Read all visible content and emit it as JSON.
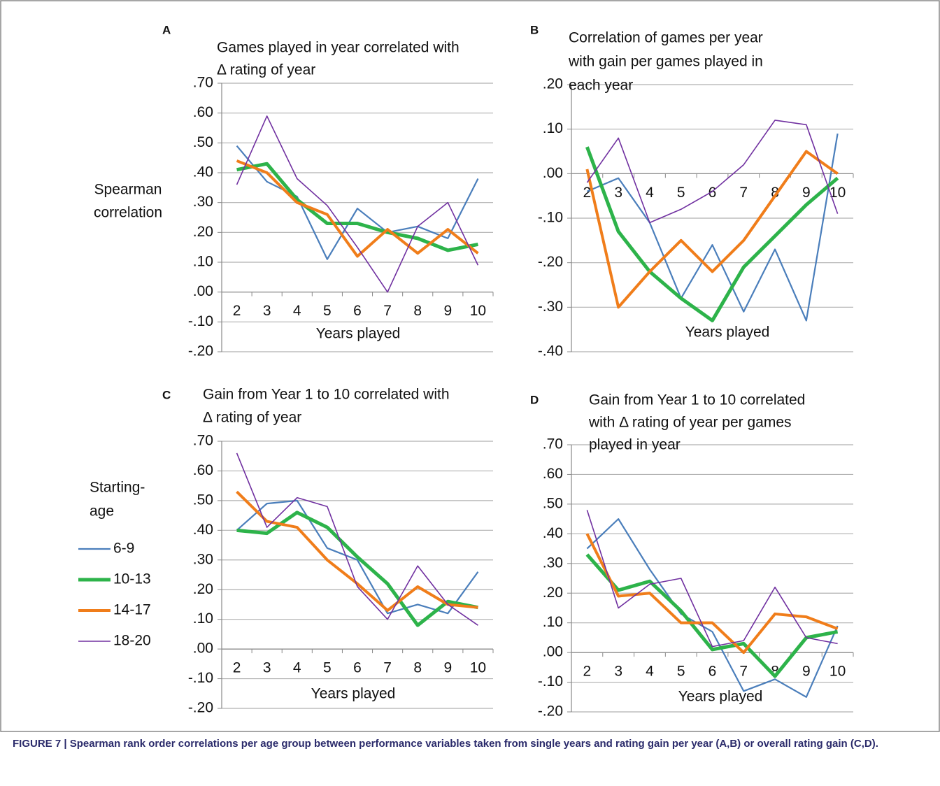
{
  "chart_data": [
    {
      "type": "line",
      "letter": "A",
      "title": [
        "Games played in year correlated with",
        "Δ rating of year"
      ],
      "ylabel": [
        "Spearman",
        "correlation"
      ],
      "xlabel": "Years played",
      "categories": [
        2,
        3,
        4,
        5,
        6,
        7,
        8,
        9,
        10
      ],
      "ylim": [
        -0.2,
        0.7
      ],
      "yticks": [
        {
          "value": 0.7,
          "label": ".70"
        },
        {
          "value": 0.6,
          "label": ".60"
        },
        {
          "value": 0.5,
          "label": ".50"
        },
        {
          "value": 0.4,
          "label": ".40"
        },
        {
          "value": 0.3,
          "label": ".30"
        },
        {
          "value": 0.2,
          "label": ".20"
        },
        {
          "value": 0.1,
          "label": ".10"
        },
        {
          "value": 0,
          "label": ".00"
        },
        {
          "value": -0.1,
          "label": "-.10"
        },
        {
          "value": -0.2,
          "label": "-.20"
        }
      ],
      "grid": true,
      "series": [
        {
          "color": "#4a7ebb",
          "line_width": 2.2,
          "values": [
            0.49,
            0.37,
            0.32,
            0.11,
            0.28,
            0.2,
            0.22,
            0.18,
            0.38
          ]
        },
        {
          "color": "#2db34a",
          "line_width": 5,
          "values": [
            0.41,
            0.43,
            0.31,
            0.23,
            0.23,
            0.2,
            0.18,
            0.14,
            0.16
          ]
        },
        {
          "color": "#f07d1a",
          "line_width": 4,
          "values": [
            0.44,
            0.4,
            0.3,
            0.26,
            0.12,
            0.21,
            0.13,
            0.21,
            0.13
          ]
        },
        {
          "color": "#7030a0",
          "line_width": 1.6,
          "values": [
            0.36,
            0.59,
            0.38,
            0.29,
            0.15,
            0.0,
            0.22,
            0.3,
            0.09
          ]
        }
      ]
    },
    {
      "type": "line",
      "letter": "B",
      "title": [
        "Correlation of games per year",
        "with  gain per games played in",
        "each year"
      ],
      "xlabel": "Years played",
      "categories": [
        2,
        3,
        4,
        5,
        6,
        7,
        8,
        9,
        10
      ],
      "ylim": [
        -0.4,
        0.2
      ],
      "yticks": [
        {
          "value": 0.2,
          "label": ".20"
        },
        {
          "value": 0.1,
          "label": ".10"
        },
        {
          "value": 0,
          "label": ".00"
        },
        {
          "value": -0.1,
          "label": "-.10"
        },
        {
          "value": -0.2,
          "label": "-.20"
        },
        {
          "value": -0.3,
          "label": "-.30"
        },
        {
          "value": -0.4,
          "label": "-.40"
        }
      ],
      "grid": true,
      "series": [
        {
          "color": "#4a7ebb",
          "line_width": 2.2,
          "values": [
            -0.04,
            -0.01,
            -0.11,
            -0.28,
            -0.16,
            -0.31,
            -0.17,
            -0.33,
            0.09
          ]
        },
        {
          "color": "#2db34a",
          "line_width": 5,
          "values": [
            0.06,
            -0.13,
            -0.22,
            -0.28,
            -0.33,
            -0.21,
            -0.14,
            -0.07,
            -0.01
          ]
        },
        {
          "color": "#f07d1a",
          "line_width": 4,
          "values": [
            0.01,
            -0.3,
            -0.22,
            -0.15,
            -0.22,
            -0.15,
            -0.05,
            0.05,
            0.0
          ]
        },
        {
          "color": "#7030a0",
          "line_width": 1.6,
          "values": [
            -0.02,
            0.08,
            -0.11,
            -0.08,
            -0.04,
            0.02,
            0.12,
            0.11,
            -0.09
          ]
        }
      ]
    },
    {
      "type": "line",
      "letter": "C",
      "title": [
        "Gain from Year 1 to 10 correlated with",
        "Δ rating of year"
      ],
      "xlabel": "Years played",
      "legend_title": [
        "Starting-",
        "age"
      ],
      "categories": [
        2,
        3,
        4,
        5,
        6,
        7,
        8,
        9,
        10
      ],
      "ylim": [
        -0.2,
        0.7
      ],
      "yticks": [
        {
          "value": 0.7,
          "label": ".70"
        },
        {
          "value": 0.6,
          "label": ".60"
        },
        {
          "value": 0.5,
          "label": ".50"
        },
        {
          "value": 0.4,
          "label": ".40"
        },
        {
          "value": 0.3,
          "label": ".30"
        },
        {
          "value": 0.2,
          "label": ".20"
        },
        {
          "value": 0.1,
          "label": ".10"
        },
        {
          "value": 0,
          "label": ".00"
        },
        {
          "value": -0.1,
          "label": "-.10"
        },
        {
          "value": -0.2,
          "label": "-.20"
        }
      ],
      "grid": true,
      "series": [
        {
          "name": "6-9",
          "color": "#4a7ebb",
          "line_width": 2.2,
          "values": [
            0.4,
            0.49,
            0.5,
            0.34,
            0.3,
            0.12,
            0.15,
            0.12,
            0.26
          ]
        },
        {
          "name": "10-13",
          "color": "#2db34a",
          "line_width": 5,
          "values": [
            0.4,
            0.39,
            0.46,
            0.41,
            0.31,
            0.22,
            0.08,
            0.16,
            0.14
          ]
        },
        {
          "name": "14-17",
          "color": "#f07d1a",
          "line_width": 4,
          "values": [
            0.53,
            0.43,
            0.41,
            0.3,
            0.22,
            0.13,
            0.21,
            0.15,
            0.14
          ]
        },
        {
          "name": "18-20",
          "color": "#7030a0",
          "line_width": 1.6,
          "values": [
            0.66,
            0.41,
            0.51,
            0.48,
            0.21,
            0.1,
            0.28,
            0.15,
            0.08
          ]
        }
      ]
    },
    {
      "type": "line",
      "letter": "D",
      "title": [
        "Gain from Year 1 to 10 correlated",
        "with  Δ rating of year per games",
        "played in year"
      ],
      "xlabel": "Years played",
      "categories": [
        2,
        3,
        4,
        5,
        6,
        7,
        8,
        9,
        10
      ],
      "ylim": [
        -0.2,
        0.7
      ],
      "yticks": [
        {
          "value": 0.7,
          "label": ".70"
        },
        {
          "value": 0.6,
          "label": ".60"
        },
        {
          "value": 0.5,
          "label": ".50"
        },
        {
          "value": 0.4,
          "label": ".40"
        },
        {
          "value": 0.3,
          "label": ".30"
        },
        {
          "value": 0.2,
          "label": ".20"
        },
        {
          "value": 0.1,
          "label": ".10"
        },
        {
          "value": 0,
          "label": ".00"
        },
        {
          "value": -0.1,
          "label": "-.10"
        },
        {
          "value": -0.2,
          "label": "-.20"
        }
      ],
      "grid": true,
      "series": [
        {
          "color": "#4a7ebb",
          "line_width": 2.2,
          "values": [
            0.35,
            0.45,
            0.28,
            0.13,
            0.07,
            -0.13,
            -0.09,
            -0.15,
            0.09
          ]
        },
        {
          "color": "#2db34a",
          "line_width": 5,
          "values": [
            0.33,
            0.21,
            0.24,
            0.14,
            0.01,
            0.03,
            -0.08,
            0.05,
            0.07
          ]
        },
        {
          "color": "#f07d1a",
          "line_width": 4,
          "values": [
            0.4,
            0.19,
            0.2,
            0.1,
            0.1,
            0.0,
            0.13,
            0.12,
            0.08
          ]
        },
        {
          "color": "#7030a0",
          "line_width": 1.6,
          "values": [
            0.48,
            0.15,
            0.23,
            0.25,
            0.02,
            0.04,
            0.22,
            0.05,
            0.03
          ]
        }
      ]
    }
  ],
  "caption": "FIGURE 7 | Spearman rank order correlations per age group between performance variables taken from single years and rating gain per year (A,B) or overall rating gain (C,D)."
}
